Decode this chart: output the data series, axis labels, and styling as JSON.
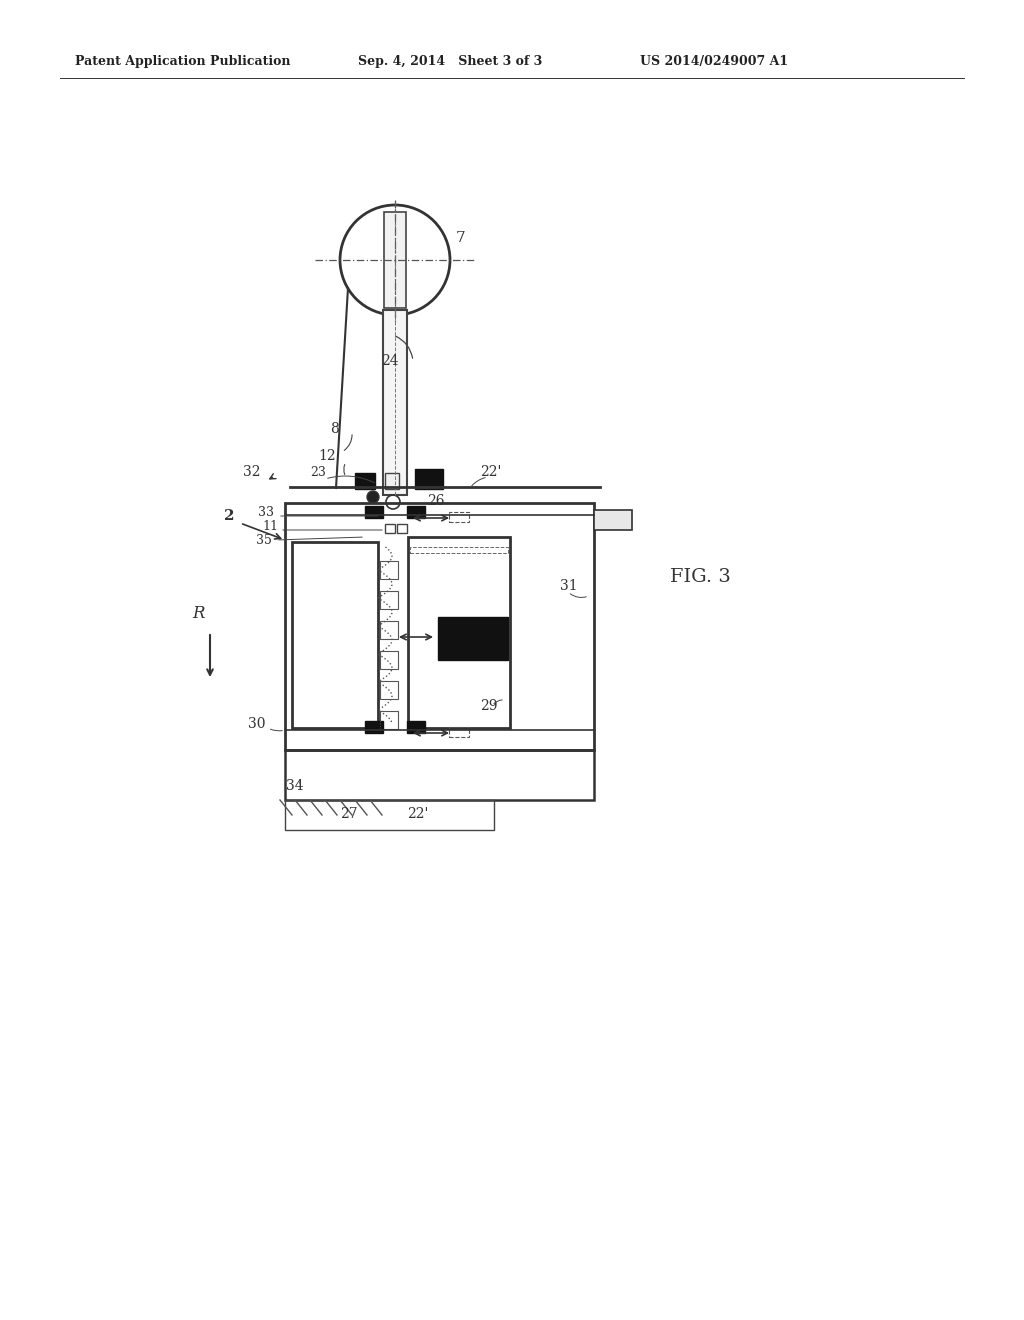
{
  "bg_color": "#ffffff",
  "header_text1": "Patent Application Publication",
  "header_text2": "Sep. 4, 2014   Sheet 3 of 3",
  "header_text3": "US 2014/0249007 A1",
  "fig_label": "FIG. 3"
}
